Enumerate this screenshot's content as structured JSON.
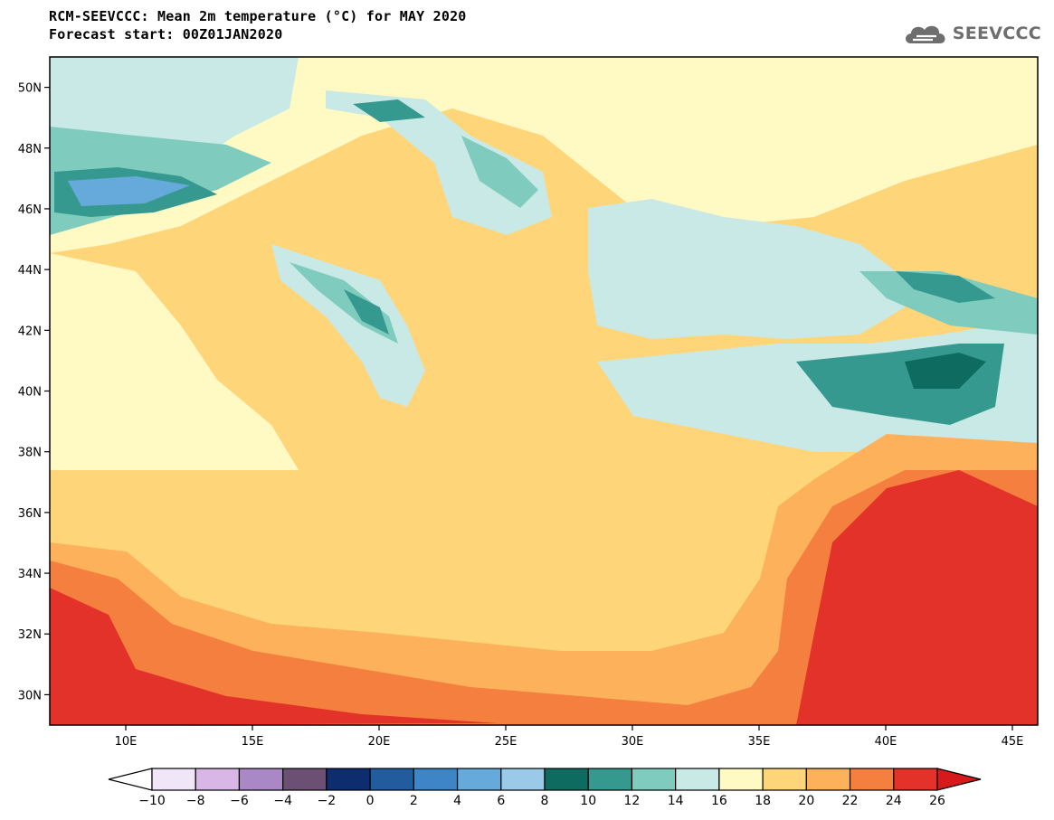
{
  "header": {
    "title_line1": "RCM-SEEVCCC: Mean 2m temperature (°C) for MAY 2020",
    "title_line2": "Forecast start: 00Z01JAN2020"
  },
  "logo": {
    "text": "SEEVCCC",
    "icon": "cloud-icon"
  },
  "map": {
    "lon_range": [
      7,
      46
    ],
    "lat_range": [
      29,
      51
    ],
    "lon_ticks": [
      "10E",
      "15E",
      "20E",
      "25E",
      "30E",
      "35E",
      "40E",
      "45E"
    ],
    "lat_ticks": [
      "50N",
      "48N",
      "46N",
      "44N",
      "42N",
      "40N",
      "38N",
      "36N",
      "34N",
      "32N",
      "30N"
    ]
  },
  "colorbar": {
    "labels": [
      "−10",
      "−8",
      "−6",
      "−4",
      "−2",
      "0",
      "2",
      "4",
      "6",
      "8",
      "10",
      "12",
      "14",
      "16",
      "18",
      "20",
      "22",
      "24",
      "26"
    ],
    "colors": [
      "#f1e6f7",
      "#d8b7e6",
      "#aa87c5",
      "#6c5074",
      "#0d2d6e",
      "#235c9e",
      "#3d85c6",
      "#66aadb",
      "#9bc9e8",
      "#0e6b5f",
      "#359990",
      "#7fccbf",
      "#c8e9e5",
      "#fff9c4",
      "#ffd57a",
      "#fdb15b",
      "#f57f3e",
      "#e3322a"
    ],
    "under_color": "#ffffff",
    "over_color": "#d7191c"
  }
}
